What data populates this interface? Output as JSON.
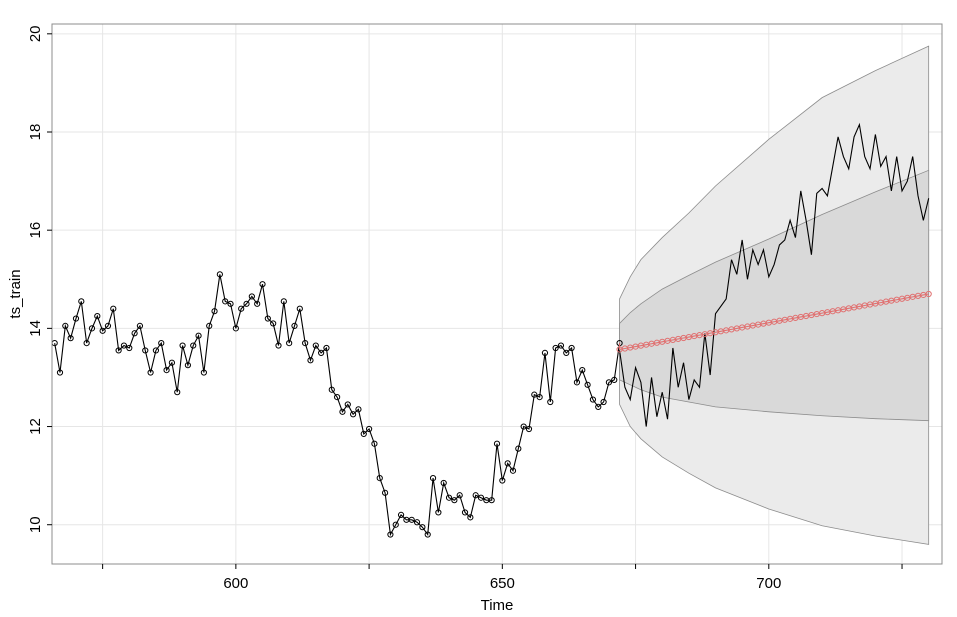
{
  "chart_data": {
    "type": "line",
    "xlabel": "Time",
    "ylabel": "ts_train",
    "xlim": [
      565.5,
      732.5
    ],
    "ylim": [
      9.2,
      20.2
    ],
    "grid": true,
    "x_ticks": [
      600,
      650,
      700
    ],
    "y_ticks": [
      10,
      12,
      14,
      16,
      18,
      20
    ],
    "colors": {
      "train": "#000000",
      "forecast": "#e07070",
      "band_outer": "#ebebeb",
      "band_inner": "#d9d9d9",
      "band_edge": "#8c8c8c",
      "grid": "#e6e6e6",
      "frame": "#8c8c8c"
    },
    "train": {
      "x_start": 566,
      "values": [
        13.7,
        13.1,
        14.05,
        13.8,
        14.2,
        14.55,
        13.7,
        14.0,
        14.25,
        13.95,
        14.05,
        14.4,
        13.55,
        13.65,
        13.6,
        13.9,
        14.05,
        13.55,
        13.1,
        13.55,
        13.7,
        13.15,
        13.3,
        12.7,
        13.65,
        13.25,
        13.65,
        13.85,
        13.1,
        14.05,
        14.35,
        15.1,
        14.55,
        14.5,
        14.0,
        14.4,
        14.5,
        14.65,
        14.5,
        14.9,
        14.2,
        14.1,
        13.65,
        14.55,
        13.7,
        14.05,
        14.4,
        13.7,
        13.35,
        13.65,
        13.5,
        13.6,
        12.75,
        12.6,
        12.3,
        12.45,
        12.25,
        12.35,
        11.85,
        11.95,
        11.65,
        10.95,
        10.65,
        9.8,
        10.0,
        10.2,
        10.1,
        10.1,
        10.05,
        9.95,
        9.8,
        10.95,
        10.25,
        10.85,
        10.55,
        10.5,
        10.6,
        10.25,
        10.15,
        10.6,
        10.55,
        10.5,
        10.5,
        11.65,
        10.9,
        11.25,
        11.1,
        11.55,
        12.0,
        11.95,
        12.65,
        12.6,
        13.5,
        12.5,
        13.6,
        13.65,
        13.5,
        13.6,
        12.9,
        13.15,
        12.85,
        12.55,
        12.4,
        12.5,
        12.9,
        12.95,
        13.7
      ]
    },
    "test": {
      "x_start": 672,
      "values": [
        13.55,
        12.8,
        12.55,
        13.2,
        12.9,
        12.0,
        13.0,
        12.2,
        12.7,
        12.15,
        13.6,
        12.8,
        13.3,
        12.55,
        12.95,
        12.8,
        13.9,
        13.05,
        14.3,
        14.45,
        14.6,
        15.4,
        15.1,
        15.8,
        15.0,
        15.6,
        15.3,
        15.6,
        15.05,
        15.3,
        15.7,
        15.8,
        16.2,
        15.85,
        16.8,
        16.2,
        15.5,
        16.75,
        16.85,
        16.7,
        17.3,
        17.9,
        17.5,
        17.25,
        17.9,
        18.15,
        17.5,
        17.25,
        17.95,
        17.3,
        17.5,
        16.8,
        17.5,
        16.8,
        17.0,
        17.5,
        16.7,
        16.2,
        16.65
      ]
    },
    "forecast": {
      "x_start": 672,
      "start_value": 13.57,
      "end_value": 14.7
    },
    "interval_80": {
      "x": [
        672,
        674,
        676,
        680,
        685,
        690,
        700,
        710,
        720,
        730
      ],
      "lower": [
        12.95,
        12.85,
        12.75,
        12.6,
        12.5,
        12.4,
        12.3,
        12.22,
        12.16,
        12.12
      ],
      "upper": [
        14.1,
        14.32,
        14.5,
        14.8,
        15.08,
        15.35,
        15.82,
        16.32,
        16.78,
        17.22
      ]
    },
    "interval_95": {
      "x": [
        672,
        674,
        676,
        680,
        685,
        690,
        700,
        710,
        720,
        730
      ],
      "lower": [
        12.45,
        12.0,
        11.75,
        11.38,
        11.05,
        10.75,
        10.32,
        9.98,
        9.77,
        9.6
      ],
      "upper": [
        14.6,
        15.05,
        15.4,
        15.85,
        16.35,
        16.9,
        17.85,
        18.7,
        19.25,
        19.75
      ]
    }
  }
}
